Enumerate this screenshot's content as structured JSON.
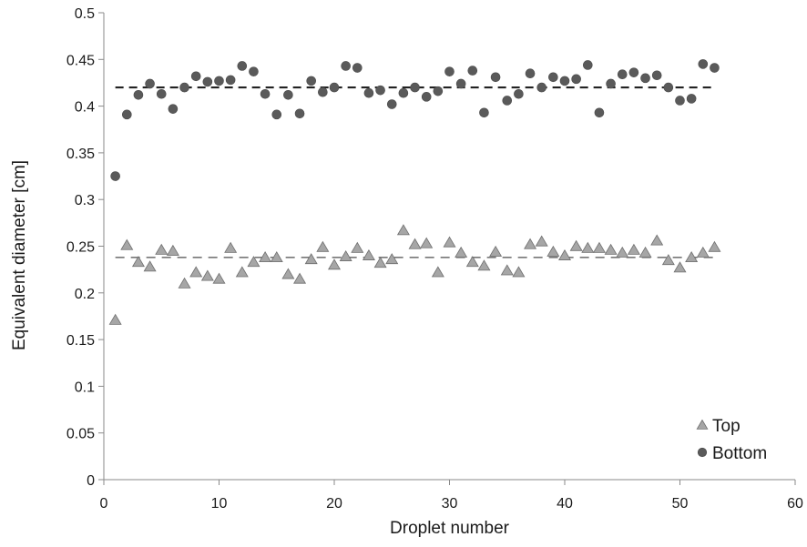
{
  "chart_data": {
    "type": "scatter",
    "xlabel": "Droplet number",
    "ylabel": "Equivalent diameter [cm]",
    "xlim": [
      0,
      60
    ],
    "ylim": [
      0,
      0.5
    ],
    "x_ticks": [
      0,
      10,
      20,
      30,
      40,
      50,
      60
    ],
    "y_ticks": [
      0,
      0.05,
      0.1,
      0.15,
      0.2,
      0.25,
      0.3,
      0.35,
      0.4,
      0.45,
      0.5
    ],
    "x_tick_labels": [
      "0",
      "10",
      "20",
      "30",
      "40",
      "50",
      "60"
    ],
    "y_tick_labels": [
      "0",
      "0.05",
      "0.1",
      "0.15",
      "0.2",
      "0.25",
      "0.3",
      "0.35",
      "0.4",
      "0.45",
      "0.5"
    ],
    "grid": false,
    "legend_position": "bottom-right",
    "series": [
      {
        "name": "Top",
        "marker": "triangle",
        "color": "#a6a6a6",
        "stroke": "#6e6e6e",
        "x": [
          1,
          2,
          3,
          4,
          5,
          6,
          7,
          8,
          9,
          10,
          11,
          12,
          13,
          14,
          15,
          16,
          17,
          18,
          19,
          20,
          21,
          22,
          23,
          24,
          25,
          26,
          27,
          28,
          29,
          30,
          31,
          32,
          33,
          34,
          35,
          36,
          37,
          38,
          39,
          40,
          41,
          42,
          43,
          44,
          45,
          46,
          47,
          48,
          49,
          50,
          51,
          52,
          53
        ],
        "y": [
          0.171,
          0.251,
          0.233,
          0.228,
          0.246,
          0.245,
          0.21,
          0.222,
          0.218,
          0.215,
          0.248,
          0.222,
          0.233,
          0.238,
          0.238,
          0.22,
          0.215,
          0.236,
          0.249,
          0.23,
          0.239,
          0.248,
          0.24,
          0.232,
          0.236,
          0.267,
          0.252,
          0.253,
          0.222,
          0.254,
          0.243,
          0.233,
          0.229,
          0.244,
          0.224,
          0.222,
          0.252,
          0.255,
          0.244,
          0.24,
          0.25,
          0.248,
          0.248,
          0.246,
          0.243,
          0.246,
          0.243,
          0.256,
          0.235,
          0.227,
          0.238,
          0.243,
          0.249
        ]
      },
      {
        "name": "Bottom",
        "marker": "circle",
        "color": "#5a5a5a",
        "stroke": "#4a4a4a",
        "x": [
          1,
          2,
          3,
          4,
          5,
          6,
          7,
          8,
          9,
          10,
          11,
          12,
          13,
          14,
          15,
          16,
          17,
          18,
          19,
          20,
          21,
          22,
          23,
          24,
          25,
          26,
          27,
          28,
          29,
          30,
          31,
          32,
          33,
          34,
          35,
          36,
          37,
          38,
          39,
          40,
          41,
          42,
          43,
          44,
          45,
          46,
          47,
          48,
          49,
          50,
          51,
          52,
          53
        ],
        "y": [
          0.325,
          0.391,
          0.412,
          0.424,
          0.413,
          0.397,
          0.42,
          0.432,
          0.426,
          0.427,
          0.428,
          0.443,
          0.437,
          0.413,
          0.391,
          0.412,
          0.392,
          0.427,
          0.415,
          0.42,
          0.443,
          0.441,
          0.414,
          0.417,
          0.402,
          0.414,
          0.42,
          0.41,
          0.416,
          0.437,
          0.424,
          0.438,
          0.393,
          0.431,
          0.406,
          0.413,
          0.435,
          0.42,
          0.431,
          0.427,
          0.429,
          0.444,
          0.393,
          0.424,
          0.434,
          0.436,
          0.43,
          0.433,
          0.42,
          0.406,
          0.408,
          0.445,
          0.441
        ]
      }
    ],
    "reference_lines": [
      {
        "series": "Top",
        "y": 0.238,
        "style": "dashed",
        "color": "#777777"
      },
      {
        "series": "Bottom",
        "y": 0.42,
        "style": "dashed",
        "color": "#222222"
      }
    ]
  }
}
